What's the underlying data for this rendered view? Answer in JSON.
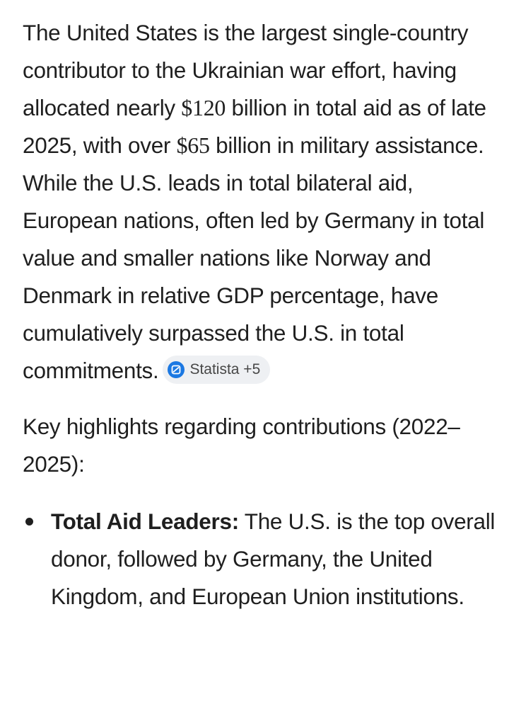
{
  "paragraph1": {
    "part1": "The United States is the largest single-country contributor to the Ukrainian war effort, having allocated nearly ",
    "amount1": "$120",
    "part2": " billion in total aid as of late 2025, with over ",
    "amount2": "$65",
    "part3": " billion in military assistance. While the U.S. leads in total bilateral aid, European nations, often led by Germany in total value and smaller nations like Norway and Denmark in relative GDP percentage, have cumulatively surpassed the U.S. in total commitments."
  },
  "source_chip": {
    "label": "Statista +5",
    "icon": "statista-logo-icon",
    "icon_color": "#1b78e2"
  },
  "paragraph2": {
    "text": "Key highlights regarding contributions (2022–2025):"
  },
  "bullets": [
    {
      "title": "Total Aid Leaders:",
      "text": " The U.S. is the top overall donor, followed by Germany, the United Kingdom, and European Union institutions."
    }
  ]
}
